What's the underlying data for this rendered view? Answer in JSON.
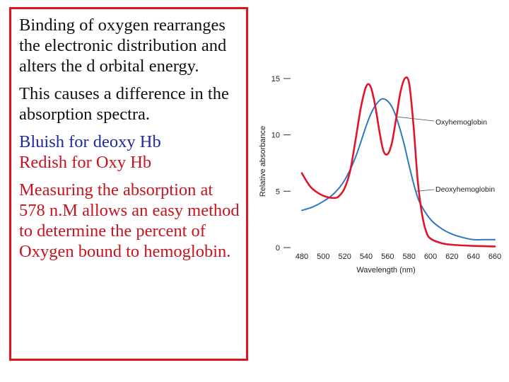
{
  "text": {
    "para1": "Binding of oxygen rearranges the electronic distribution and alters the d orbital energy.",
    "para2": "This causes a difference in the absorption spectra.",
    "para3a": "Bluish for deoxy Hb",
    "para3b": "Redish for Oxy Hb",
    "para4": "Measuring the absorption at 578 n.M allows an easy method to determine the percent of Oxygen bound to hemoglobin."
  },
  "colors": {
    "border": "#e0141e",
    "deoxy_line": "#2e78c4",
    "oxy_line": "#e0142a"
  },
  "chart_data": {
    "type": "line",
    "xlabel": "Wavelength (nm)",
    "ylabel": "Relative absorbance",
    "xlim": [
      480,
      660
    ],
    "ylim": [
      0,
      15
    ],
    "x_ticks": [
      "480",
      "500",
      "520",
      "540",
      "560",
      "580",
      "600",
      "620",
      "640",
      "660"
    ],
    "y_ticks": [
      "0",
      "5",
      "10",
      "15"
    ],
    "grid": false,
    "annotations": [
      "Oxyhemoglobin",
      "Deoxyhemoglobin"
    ],
    "series": [
      {
        "name": "Deoxyhemoglobin",
        "points": [
          [
            480,
            3.3
          ],
          [
            490,
            3.6
          ],
          [
            500,
            4.1
          ],
          [
            510,
            4.8
          ],
          [
            520,
            6.0
          ],
          [
            530,
            8.0
          ],
          [
            540,
            10.8
          ],
          [
            545,
            12.0
          ],
          [
            550,
            12.8
          ],
          [
            555,
            13.2
          ],
          [
            560,
            13.0
          ],
          [
            565,
            12.3
          ],
          [
            570,
            11.0
          ],
          [
            575,
            9.3
          ],
          [
            580,
            7.3
          ],
          [
            585,
            5.4
          ],
          [
            590,
            4.0
          ],
          [
            600,
            2.5
          ],
          [
            610,
            1.7
          ],
          [
            620,
            1.2
          ],
          [
            630,
            0.9
          ],
          [
            640,
            0.7
          ],
          [
            650,
            0.7
          ],
          [
            660,
            0.7
          ]
        ]
      },
      {
        "name": "Oxyhemoglobin",
        "points": [
          [
            480,
            6.6
          ],
          [
            485,
            5.8
          ],
          [
            490,
            5.2
          ],
          [
            500,
            4.6
          ],
          [
            510,
            4.4
          ],
          [
            515,
            4.6
          ],
          [
            520,
            5.3
          ],
          [
            525,
            6.8
          ],
          [
            530,
            9.5
          ],
          [
            535,
            12.4
          ],
          [
            540,
            14.3
          ],
          [
            544,
            14.3
          ],
          [
            548,
            12.8
          ],
          [
            552,
            10.5
          ],
          [
            556,
            8.6
          ],
          [
            560,
            8.3
          ],
          [
            564,
            9.3
          ],
          [
            568,
            11.5
          ],
          [
            572,
            13.8
          ],
          [
            576,
            15.0
          ],
          [
            580,
            14.6
          ],
          [
            584,
            11.0
          ],
          [
            588,
            6.0
          ],
          [
            592,
            3.0
          ],
          [
            596,
            1.4
          ],
          [
            600,
            0.8
          ],
          [
            610,
            0.4
          ],
          [
            620,
            0.25
          ],
          [
            640,
            0.15
          ],
          [
            660,
            0.1
          ]
        ]
      }
    ]
  }
}
